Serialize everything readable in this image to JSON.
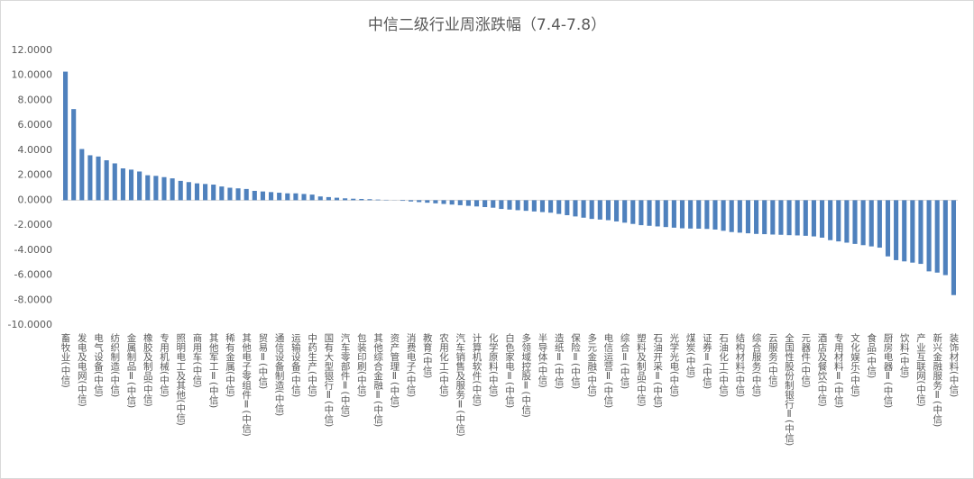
{
  "chart_data": {
    "type": "bar",
    "title": "中信二级行业周涨跌幅（7.4-7.8）",
    "categories": [
      "畜牧业(中信)",
      null,
      "发电及电网(中信)",
      null,
      "电气设备(中信)",
      null,
      "纺织制造(中信)",
      null,
      "金属制品Ⅱ(中信)",
      null,
      "橡胶及制品(中信)",
      null,
      "专用机械(中信)",
      null,
      "照明电工及其他(中信)",
      null,
      "商用车(中信)",
      null,
      "其他军工Ⅱ(中信)",
      null,
      "稀有金属(中信)",
      null,
      "其他电子零组件Ⅱ(中信)",
      null,
      "贸易Ⅱ(中信)",
      null,
      "通信设备制造(中信)",
      null,
      "运输设备(中信)",
      null,
      "中药生产(中信)",
      null,
      "国有大型银行Ⅱ(中信)",
      null,
      "汽车零部件Ⅱ(中信)",
      null,
      "包装印刷(中信)",
      null,
      "其他综合金融Ⅱ(中信)",
      null,
      "资产管理Ⅱ(中信)",
      null,
      "消费电子(中信)",
      null,
      "教育(中信)",
      null,
      "农用化工(中信)",
      null,
      "汽车销售及服务Ⅱ(中信)",
      null,
      "计算机软件(中信)",
      null,
      "化学原料(中信)",
      null,
      "白色家电Ⅱ(中信)",
      null,
      "多领域控股Ⅱ(中信)",
      null,
      "半导体(中信)",
      null,
      "造纸Ⅱ(中信)",
      null,
      "保险Ⅱ(中信)",
      null,
      "多元金融(中信)",
      null,
      "电信运营Ⅱ(中信)",
      null,
      "综合Ⅱ(中信)",
      null,
      "塑料及制品(中信)",
      null,
      "石油开采Ⅱ(中信)",
      null,
      "光学光电(中信)",
      null,
      "煤炭(中信)",
      null,
      "证券Ⅱ(中信)",
      null,
      "石油化工(中信)",
      null,
      "结构材料(中信)",
      null,
      "综合服务(中信)",
      null,
      "云服务(中信)",
      null,
      "全国性股份制银行Ⅱ(中信)",
      null,
      "元器件(中信)",
      null,
      "酒店及餐饮(中信)",
      null,
      "专用材料Ⅱ(中信)",
      null,
      "文化娱乐(中信)",
      null,
      "食品(中信)",
      null,
      "厨房电器Ⅱ(中信)",
      null,
      "饮料(中信)",
      null,
      "产业互联网(中信)",
      null,
      "新兴金融服务Ⅱ(中信)",
      null,
      "装饰材料(中信)"
    ],
    "values": [
      10.3,
      7.3,
      4.1,
      3.6,
      3.5,
      3.2,
      2.95,
      2.55,
      2.45,
      2.3,
      2.0,
      1.95,
      1.85,
      1.75,
      1.55,
      1.45,
      1.35,
      1.3,
      1.25,
      1.1,
      1.0,
      0.95,
      0.9,
      0.75,
      0.7,
      0.65,
      0.6,
      0.55,
      0.55,
      0.5,
      0.45,
      0.3,
      0.25,
      0.2,
      0.15,
      0.12,
      0.1,
      0.08,
      0.05,
      0.03,
      0.01,
      -0.05,
      -0.1,
      -0.15,
      -0.2,
      -0.25,
      -0.3,
      -0.35,
      -0.4,
      -0.45,
      -0.5,
      -0.55,
      -0.6,
      -0.7,
      -0.75,
      -0.8,
      -0.85,
      -0.9,
      -0.95,
      -1.0,
      -1.1,
      -1.2,
      -1.3,
      -1.4,
      -1.5,
      -1.55,
      -1.6,
      -1.7,
      -1.8,
      -1.9,
      -2.0,
      -2.05,
      -2.1,
      -2.15,
      -2.2,
      -2.25,
      -2.27,
      -2.28,
      -2.3,
      -2.35,
      -2.45,
      -2.55,
      -2.6,
      -2.65,
      -2.7,
      -2.72,
      -2.75,
      -2.77,
      -2.8,
      -2.82,
      -2.85,
      -2.9,
      -3.0,
      -3.2,
      -3.3,
      -3.4,
      -3.5,
      -3.6,
      -3.7,
      -3.8,
      -4.5,
      -4.8,
      -4.9,
      -5.0,
      -5.1,
      -5.7,
      -5.8,
      -6.0,
      -7.6
    ],
    "color": "#4f81bd",
    "ylim": [
      -10,
      12
    ],
    "yticks": [
      {
        "value": -10,
        "label": "-10.0000"
      },
      {
        "value": -8,
        "label": "-8.0000"
      },
      {
        "value": -6,
        "label": "-6.0000"
      },
      {
        "value": -4,
        "label": "-4.0000"
      },
      {
        "value": -2,
        "label": "-2.0000"
      },
      {
        "value": 0,
        "label": "0.0000"
      },
      {
        "value": 2,
        "label": "2.0000"
      },
      {
        "value": 4,
        "label": "4.0000"
      },
      {
        "value": 6,
        "label": "6.0000"
      },
      {
        "value": 8,
        "label": "8.0000"
      },
      {
        "value": 10,
        "label": "10.0000"
      },
      {
        "value": 12,
        "label": "12.0000"
      }
    ],
    "grid": false
  }
}
